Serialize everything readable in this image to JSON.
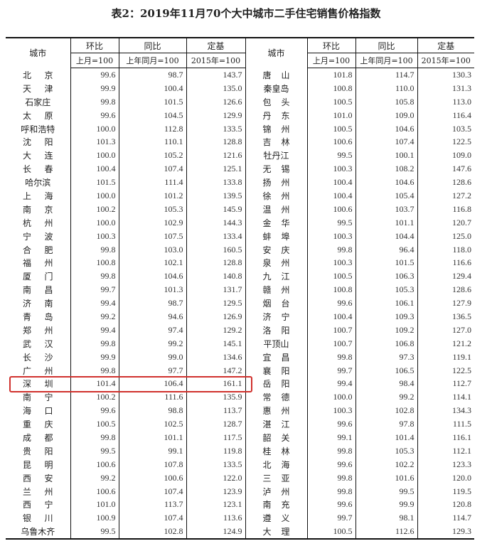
{
  "title": "表2：2019年11月70个大中城市二手住宅销售价格指数",
  "headers": {
    "city": "城市",
    "mom": "环比",
    "mom_base": "上月=100",
    "yoy": "同比",
    "yoy_base": "上年同月=100",
    "fixed": "定基",
    "fixed_base": "2015年=100"
  },
  "highlight_color": "#d0312d",
  "highlighted_city": "深圳",
  "left": [
    [
      "北京",
      "99.6",
      "98.7",
      "143.7"
    ],
    [
      "天津",
      "99.9",
      "100.4",
      "135.0"
    ],
    [
      "石家庄",
      "99.8",
      "101.5",
      "126.6"
    ],
    [
      "太原",
      "99.6",
      "104.5",
      "129.9"
    ],
    [
      "呼和浩特",
      "100.0",
      "112.8",
      "133.5"
    ],
    [
      "沈阳",
      "101.3",
      "110.1",
      "128.8"
    ],
    [
      "大连",
      "100.0",
      "105.2",
      "121.6"
    ],
    [
      "长春",
      "100.4",
      "107.4",
      "125.1"
    ],
    [
      "哈尔滨",
      "101.5",
      "111.4",
      "133.8"
    ],
    [
      "上海",
      "100.0",
      "101.2",
      "139.5"
    ],
    [
      "南京",
      "100.2",
      "105.3",
      "145.9"
    ],
    [
      "杭州",
      "100.0",
      "102.9",
      "144.3"
    ],
    [
      "宁波",
      "100.3",
      "107.5",
      "133.4"
    ],
    [
      "合肥",
      "99.8",
      "103.0",
      "160.5"
    ],
    [
      "福州",
      "100.8",
      "102.1",
      "128.8"
    ],
    [
      "厦门",
      "99.8",
      "104.6",
      "140.8"
    ],
    [
      "南昌",
      "99.7",
      "101.3",
      "131.7"
    ],
    [
      "济南",
      "99.4",
      "98.7",
      "129.5"
    ],
    [
      "青岛",
      "99.2",
      "94.6",
      "126.9"
    ],
    [
      "郑州",
      "99.4",
      "97.4",
      "129.2"
    ],
    [
      "武汉",
      "99.8",
      "99.2",
      "145.1"
    ],
    [
      "长沙",
      "99.9",
      "99.0",
      "134.6"
    ],
    [
      "广州",
      "99.8",
      "97.7",
      "147.2"
    ],
    [
      "深圳",
      "101.4",
      "106.4",
      "161.1"
    ],
    [
      "南宁",
      "100.2",
      "111.6",
      "135.9"
    ],
    [
      "海口",
      "99.6",
      "98.8",
      "113.7"
    ],
    [
      "重庆",
      "100.5",
      "102.5",
      "128.7"
    ],
    [
      "成都",
      "99.8",
      "101.1",
      "117.5"
    ],
    [
      "贵阳",
      "99.5",
      "99.1",
      "119.8"
    ],
    [
      "昆明",
      "100.6",
      "107.8",
      "133.5"
    ],
    [
      "西安",
      "99.2",
      "100.6",
      "122.0"
    ],
    [
      "兰州",
      "100.6",
      "107.4",
      "123.9"
    ],
    [
      "西宁",
      "101.0",
      "113.7",
      "123.1"
    ],
    [
      "银川",
      "100.9",
      "107.4",
      "113.6"
    ],
    [
      "乌鲁木齐",
      "99.5",
      "102.8",
      "124.9"
    ]
  ],
  "right": [
    [
      "唐山",
      "101.8",
      "114.7",
      "130.3"
    ],
    [
      "秦皇岛",
      "100.8",
      "110.0",
      "131.3"
    ],
    [
      "包头",
      "100.5",
      "105.8",
      "113.0"
    ],
    [
      "丹东",
      "101.0",
      "109.0",
      "116.4"
    ],
    [
      "锦州",
      "100.5",
      "104.6",
      "103.5"
    ],
    [
      "吉林",
      "100.6",
      "107.4",
      "122.5"
    ],
    [
      "牡丹江",
      "99.5",
      "100.1",
      "109.0"
    ],
    [
      "无锡",
      "100.3",
      "108.2",
      "147.6"
    ],
    [
      "扬州",
      "100.4",
      "104.6",
      "128.6"
    ],
    [
      "徐州",
      "100.4",
      "105.4",
      "127.2"
    ],
    [
      "温州",
      "100.6",
      "103.7",
      "116.8"
    ],
    [
      "金华",
      "99.5",
      "101.1",
      "120.7"
    ],
    [
      "蚌埠",
      "100.3",
      "104.4",
      "125.0"
    ],
    [
      "安庆",
      "99.8",
      "96.4",
      "118.0"
    ],
    [
      "泉州",
      "100.3",
      "101.5",
      "116.6"
    ],
    [
      "九江",
      "100.5",
      "106.3",
      "129.4"
    ],
    [
      "赣州",
      "100.8",
      "105.3",
      "128.6"
    ],
    [
      "烟台",
      "99.6",
      "106.1",
      "127.9"
    ],
    [
      "济宁",
      "100.4",
      "109.3",
      "136.5"
    ],
    [
      "洛阳",
      "100.7",
      "109.2",
      "127.0"
    ],
    [
      "平顶山",
      "100.7",
      "106.8",
      "121.2"
    ],
    [
      "宜昌",
      "99.8",
      "97.3",
      "119.1"
    ],
    [
      "襄阳",
      "99.7",
      "106.5",
      "122.5"
    ],
    [
      "岳阳",
      "99.4",
      "98.4",
      "112.7"
    ],
    [
      "常德",
      "100.0",
      "99.2",
      "114.1"
    ],
    [
      "惠州",
      "100.3",
      "102.8",
      "134.3"
    ],
    [
      "湛江",
      "99.6",
      "97.8",
      "111.5"
    ],
    [
      "韶关",
      "99.1",
      "101.4",
      "116.1"
    ],
    [
      "桂林",
      "99.8",
      "105.3",
      "112.1"
    ],
    [
      "北海",
      "99.6",
      "102.2",
      "123.3"
    ],
    [
      "三亚",
      "99.8",
      "101.6",
      "120.0"
    ],
    [
      "泸州",
      "99.8",
      "99.5",
      "119.5"
    ],
    [
      "南充",
      "99.6",
      "99.9",
      "120.8"
    ],
    [
      "遵义",
      "99.7",
      "98.1",
      "114.7"
    ],
    [
      "大理",
      "100.5",
      "112.6",
      "129.3"
    ]
  ]
}
